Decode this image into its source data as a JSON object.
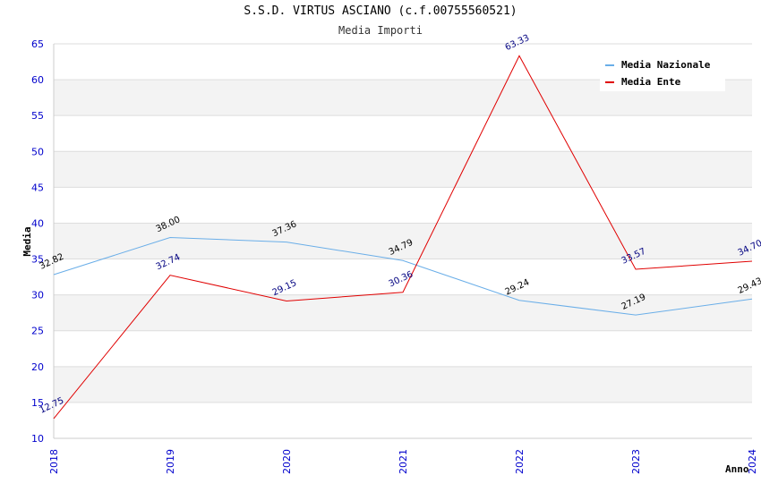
{
  "chart_data": {
    "type": "line",
    "title": "S.S.D. VIRTUS ASCIANO (c.f.00755560521)",
    "subtitle": "Media Importi",
    "xlabel": "Anno",
    "ylabel": "Media",
    "categories": [
      "2018",
      "2019",
      "2020",
      "2021",
      "2022",
      "2023",
      "2024"
    ],
    "ylim": [
      10,
      65
    ],
    "yticks": [
      10,
      15,
      20,
      25,
      30,
      35,
      40,
      45,
      50,
      55,
      60,
      65
    ],
    "grid": true,
    "legend_position": "top-right",
    "series": [
      {
        "name": "Media Nazionale",
        "color": "#6aaee8",
        "values": [
          32.82,
          38.0,
          37.36,
          34.79,
          29.24,
          27.19,
          29.43
        ],
        "labels": [
          "32.82",
          "38.00",
          "37.36",
          "34.79",
          "29.24",
          "27.19",
          "29.43"
        ]
      },
      {
        "name": "Media Ente",
        "color": "#e00000",
        "values": [
          12.75,
          32.74,
          29.15,
          30.36,
          63.33,
          33.57,
          34.7
        ],
        "labels": [
          "12.75",
          "32.74",
          "29.15",
          "30.36",
          "63.33",
          "33.57",
          "34.70"
        ]
      }
    ]
  }
}
